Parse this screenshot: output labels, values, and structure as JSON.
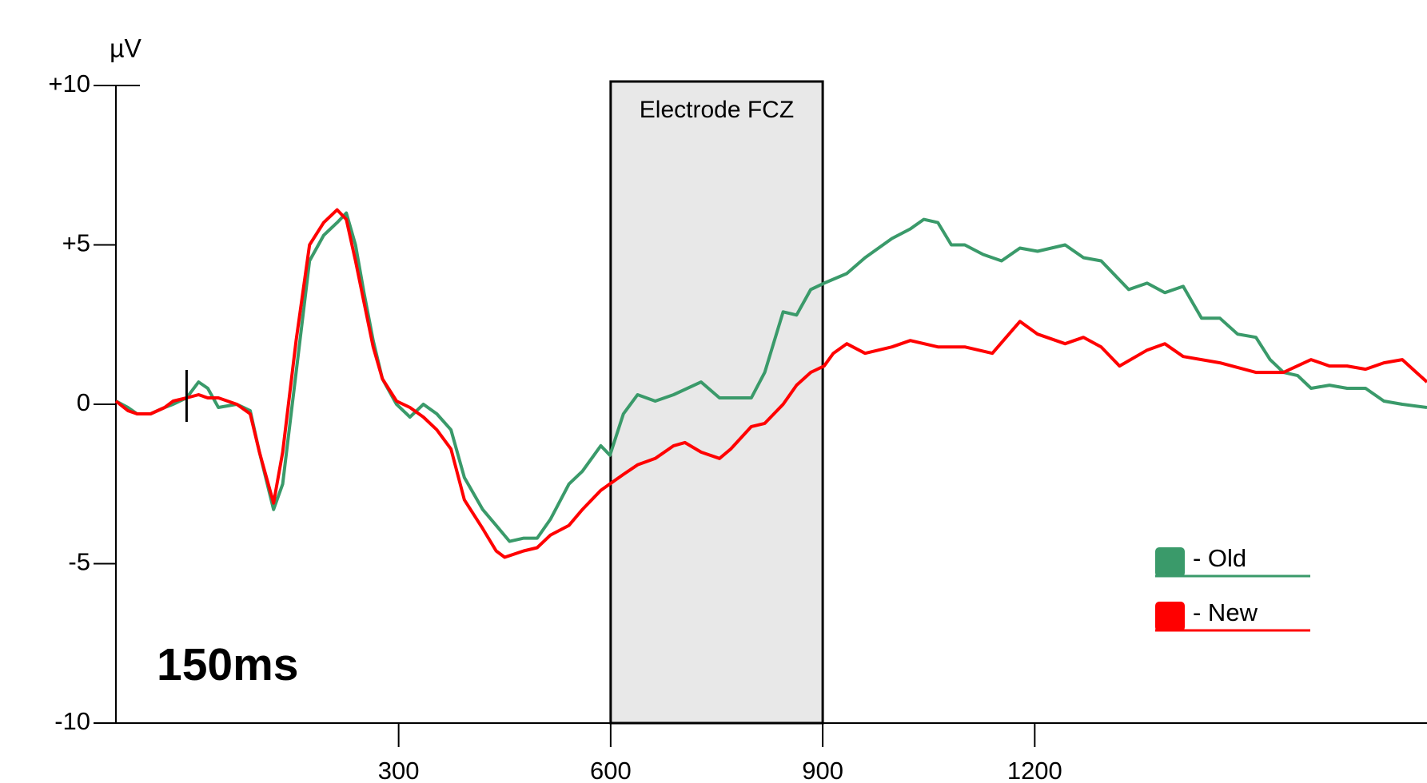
{
  "chart_data": {
    "type": "line",
    "y_label": "µV",
    "annotations": [
      "Electrode FCZ",
      "150ms"
    ],
    "highlight": [
      600,
      900
    ],
    "onset": 0,
    "xlim": [
      -100,
      1755
    ],
    "xticks": [
      300,
      600,
      900,
      1200
    ],
    "ylim": [
      -10,
      10
    ],
    "yticks": [
      {
        "value": 10,
        "label": "+10"
      },
      {
        "value": 5,
        "label": "+5"
      },
      0,
      -5,
      -10
    ],
    "legend": "lower right",
    "series": [
      {
        "name": "- Old",
        "color": "#3a9a6a",
        "x": [
          -100,
          -83,
          -70,
          -51,
          -31,
          -19,
          0,
          17,
          30,
          45,
          71,
          90,
          103,
          123,
          136,
          155,
          174,
          194,
          213,
          226,
          239,
          251,
          264,
          277,
          297,
          316,
          335,
          354,
          374,
          393,
          419,
          438,
          457,
          477,
          496,
          515,
          541,
          560,
          586,
          599,
          618,
          638,
          663,
          689,
          728,
          754,
          799,
          818,
          844,
          863,
          883,
          902,
          934,
          960,
          998,
          1024,
          1043,
          1063,
          1082,
          1101,
          1127,
          1153,
          1179,
          1204,
          1243,
          1269,
          1294,
          1333,
          1359,
          1384,
          1410,
          1436,
          1462,
          1487,
          1513,
          1533,
          1552,
          1572,
          1591,
          1617,
          1642,
          1668,
          1694,
          1720,
          1755
        ],
        "values": [
          0.1,
          -0.1,
          -0.3,
          -0.3,
          -0.1,
          0,
          0.2,
          0.7,
          0.5,
          -0.1,
          0,
          -0.2,
          -1.5,
          -3.3,
          -2.5,
          1.0,
          4.5,
          5.3,
          5.7,
          6.0,
          5.0,
          3.5,
          2.0,
          0.8,
          0,
          -0.4,
          0,
          -0.3,
          -0.8,
          -2.3,
          -3.3,
          -3.8,
          -4.3,
          -4.2,
          -4.2,
          -3.6,
          -2.5,
          -2.1,
          -1.3,
          -1.6,
          -0.3,
          0.3,
          0.1,
          0.3,
          0.7,
          0.2,
          0.2,
          1.0,
          2.9,
          2.8,
          3.6,
          3.8,
          4.1,
          4.6,
          5.2,
          5.5,
          5.8,
          5.7,
          5.0,
          5.0,
          4.7,
          4.5,
          4.9,
          4.8,
          5.0,
          4.6,
          4.5,
          3.6,
          3.8,
          3.5,
          3.7,
          2.7,
          2.7,
          2.2,
          2.1,
          1.4,
          1.0,
          0.9,
          0.5,
          0.6,
          0.5,
          0.5,
          0.1,
          0,
          -0.1
        ]
      },
      {
        "name": "- New",
        "color": "#ff0000",
        "x": [
          -100,
          -83,
          -70,
          -51,
          -31,
          -19,
          0,
          17,
          30,
          45,
          71,
          90,
          103,
          123,
          136,
          155,
          174,
          194,
          213,
          226,
          239,
          251,
          264,
          277,
          297,
          316,
          335,
          354,
          374,
          393,
          419,
          438,
          450,
          477,
          496,
          515,
          541,
          560,
          586,
          618,
          638,
          663,
          689,
          705,
          728,
          754,
          770,
          799,
          818,
          844,
          863,
          883,
          902,
          915,
          934,
          960,
          998,
          1024,
          1063,
          1101,
          1140,
          1179,
          1204,
          1243,
          1269,
          1294,
          1320,
          1359,
          1384,
          1410,
          1462,
          1513,
          1552,
          1591,
          1617,
          1642,
          1668,
          1694,
          1720,
          1740,
          1755
        ],
        "values": [
          0.1,
          -0.2,
          -0.3,
          -0.3,
          -0.1,
          0.1,
          0.2,
          0.3,
          0.2,
          0.2,
          0,
          -0.3,
          -1.5,
          -3.1,
          -1.5,
          2.0,
          5.0,
          5.7,
          6.1,
          5.8,
          4.5,
          3.2,
          1.8,
          0.8,
          0.1,
          -0.1,
          -0.4,
          -0.8,
          -1.4,
          -3.0,
          -3.9,
          -4.6,
          -4.8,
          -4.6,
          -4.5,
          -4.1,
          -3.8,
          -3.3,
          -2.7,
          -2.2,
          -1.9,
          -1.7,
          -1.3,
          -1.2,
          -1.5,
          -1.7,
          -1.4,
          -0.7,
          -0.6,
          0,
          0.6,
          1.0,
          1.2,
          1.6,
          1.9,
          1.6,
          1.8,
          2.0,
          1.8,
          1.8,
          1.6,
          2.6,
          2.2,
          1.9,
          2.1,
          1.8,
          1.2,
          1.7,
          1.9,
          1.5,
          1.3,
          1.0,
          1.0,
          1.4,
          1.2,
          1.2,
          1.1,
          1.3,
          1.4,
          1.0,
          0.7
        ]
      }
    ]
  }
}
